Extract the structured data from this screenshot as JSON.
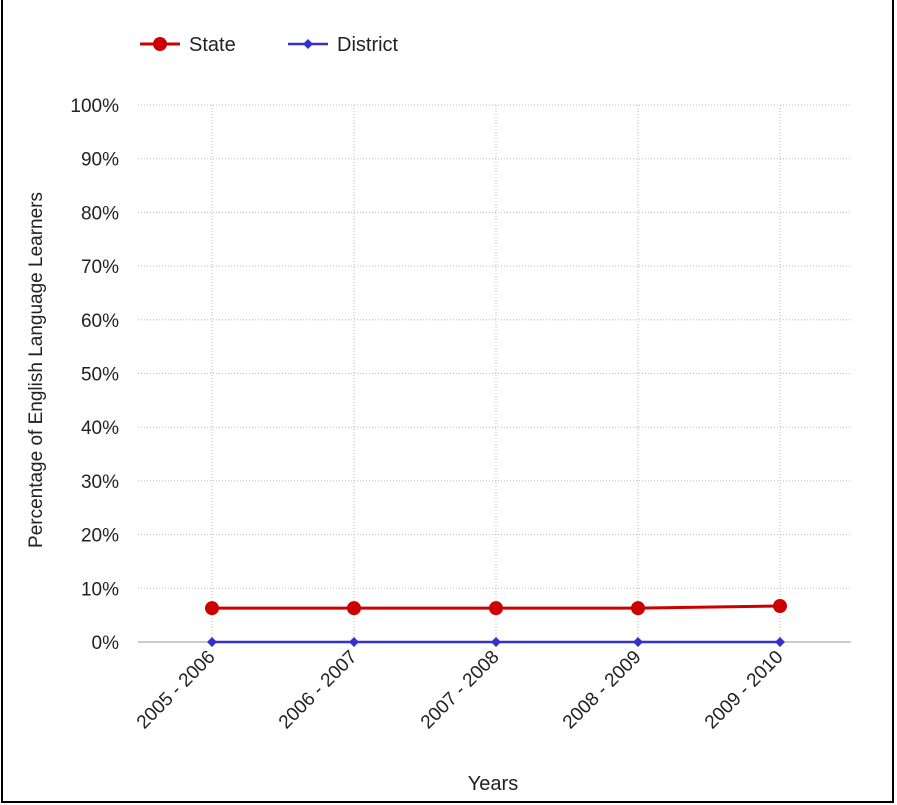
{
  "chart_data": {
    "type": "line",
    "title": "",
    "xlabel": "Years",
    "ylabel": "Percentage of English Language Learners",
    "categories": [
      "2005 - 2006",
      "2006 - 2007",
      "2007 - 2008",
      "2008 - 2009",
      "2009 - 2010"
    ],
    "y_ticks": [
      "0%",
      "10%",
      "20%",
      "30%",
      "40%",
      "50%",
      "60%",
      "70%",
      "80%",
      "90%",
      "100%"
    ],
    "ylim": [
      0,
      100
    ],
    "grid": true,
    "legend_position": "top-left",
    "series": [
      {
        "name": "State",
        "color": "#cc0000",
        "marker": "circle",
        "values": [
          6.3,
          6.3,
          6.3,
          6.3,
          6.7
        ]
      },
      {
        "name": "District",
        "color": "#3333cc",
        "marker": "diamond",
        "values": [
          0,
          0,
          0,
          0,
          0
        ]
      }
    ]
  }
}
